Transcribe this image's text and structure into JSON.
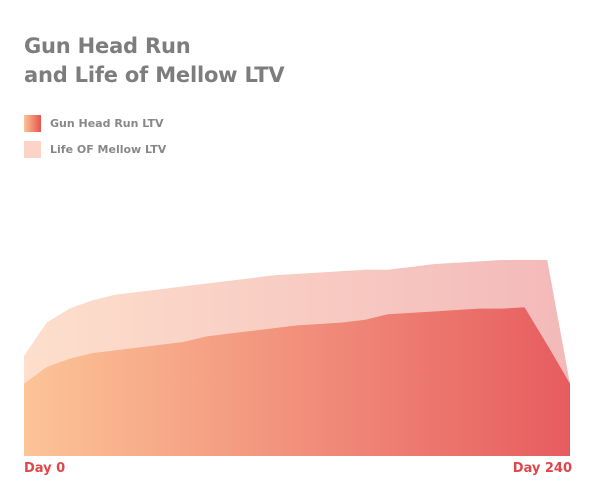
{
  "title_lines": [
    "Gun Head Run",
    "and Life of Mellow LTV"
  ],
  "legend": [
    {
      "label": "Gun Head Run LTV",
      "color": "#e8534d"
    },
    {
      "label": "Life OF Mellow LTV",
      "color": "#fbd3c7"
    }
  ],
  "x_axis": {
    "start_label": "Day 0",
    "end_label": "Day 240"
  },
  "chart_data": {
    "type": "area",
    "x": [
      0,
      10,
      20,
      30,
      40,
      50,
      60,
      70,
      80,
      90,
      100,
      110,
      120,
      130,
      140,
      150,
      160,
      170,
      180,
      190,
      200,
      210,
      220,
      230,
      240
    ],
    "xlim": [
      0,
      240
    ],
    "ylim": [
      0,
      100
    ],
    "grid": true,
    "legend_position": "top-left",
    "series": [
      {
        "name": "Life OF Mellow LTV",
        "values": [
          36,
          48,
          53,
          56,
          58,
          59,
          60,
          61,
          62,
          63,
          64,
          65,
          65.5,
          66,
          66.5,
          67,
          67,
          68,
          69,
          69.5,
          70,
          70.5,
          70.5,
          70.5,
          26
        ]
      },
      {
        "name": "Gun Head Run LTV",
        "values": [
          26,
          32,
          35,
          37,
          38,
          39,
          40,
          41,
          43,
          44,
          45,
          46,
          47,
          47.5,
          48,
          49,
          51,
          51.5,
          52,
          52.5,
          53,
          53,
          53.5,
          40,
          26
        ]
      }
    ]
  },
  "colors": {
    "title": "#7d7d7d",
    "axis_label": "#e0454a",
    "gradient_start": "#fcc497",
    "gradient_end": "#e75c60",
    "back_area_start": "#fddfcc",
    "back_area_end": "#f3b9b9"
  }
}
